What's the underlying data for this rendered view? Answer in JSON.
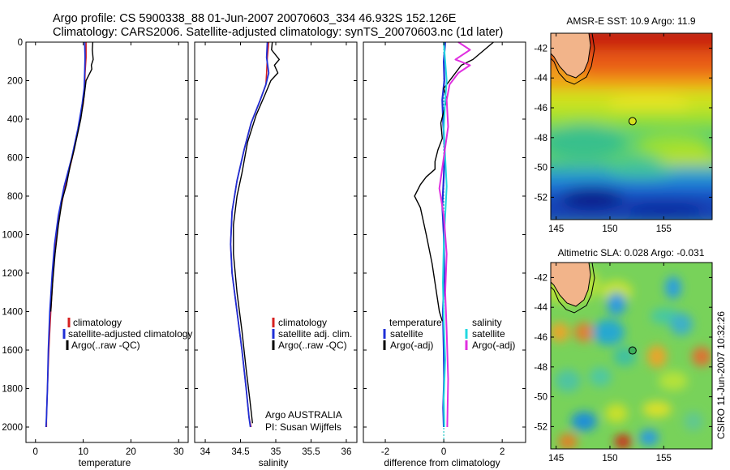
{
  "header": {
    "line1": "Argo profile: CS 5900338_88 01-Jun-2007 20070603_334 46.932S 152.126E",
    "line2": "Climatology: CARS2006. Satellite-adjusted climatology: synTS_20070603.nc (1d later)"
  },
  "colors": {
    "climatology": "#d62020",
    "satellite": "#1f2fd6",
    "argo": "#000000",
    "salinity_satellite": "#22d8e0",
    "salinity_argo": "#e030e0",
    "land": "#f2b48a"
  },
  "chart_data": [
    {
      "type": "line",
      "name": "temperature-panel",
      "xlabel": "temperature",
      "xlim": [
        -2,
        32
      ],
      "ylim": [
        2080,
        0
      ],
      "xticks": [
        "0",
        "10",
        "20",
        "30"
      ],
      "yticks": [
        "0",
        "200",
        "400",
        "600",
        "800",
        "1000",
        "1200",
        "1400",
        "1600",
        "1800",
        "2000"
      ],
      "legend": [
        "climatology",
        "satellite-adjusted climatology",
        "Argo(..raw -QC)"
      ],
      "series": [
        {
          "name": "climatology",
          "color": "#d62020",
          "width": 1.6,
          "x": [
            10.6,
            10.6,
            10.4,
            10.3,
            10.0,
            9.0,
            7.7,
            6.2,
            5.0,
            4.2,
            3.7,
            3.2,
            2.8,
            2.5,
            2.3,
            2.3
          ],
          "y": [
            0,
            80,
            160,
            240,
            320,
            450,
            600,
            750,
            900,
            1050,
            1200,
            1400,
            1600,
            1800,
            1950,
            2000
          ]
        },
        {
          "name": "satellite-adjusted",
          "color": "#1f2fd6",
          "width": 1.8,
          "x": [
            10.3,
            10.4,
            10.3,
            10.2,
            9.8,
            8.9,
            7.6,
            6.0,
            4.8,
            4.0,
            3.5,
            3.0,
            2.7,
            2.5,
            2.3,
            2.2
          ],
          "y": [
            0,
            80,
            160,
            240,
            320,
            450,
            600,
            750,
            900,
            1050,
            1200,
            1400,
            1600,
            1800,
            1950,
            2000
          ]
        },
        {
          "name": "Argo",
          "color": "#000000",
          "width": 1.4,
          "x": [
            12.0,
            11.9,
            12.1,
            11.7,
            11.8,
            10.6,
            10.2,
            9.5,
            8.1,
            7.3,
            6.8,
            6.5,
            5.6,
            4.8,
            4.1,
            3.6,
            3.2
          ],
          "y": [
            0,
            40,
            90,
            120,
            140,
            200,
            280,
            400,
            560,
            640,
            700,
            740,
            820,
            950,
            1100,
            1250,
            1400
          ]
        }
      ]
    },
    {
      "type": "line",
      "name": "salinity-panel",
      "xlabel": "salinity",
      "xlim": [
        33.85,
        36.15
      ],
      "ylim": [
        2080,
        0
      ],
      "xticks": [
        "34",
        "34.5",
        "35",
        "35.5",
        "36"
      ],
      "yticks": [],
      "legend": [
        "climatology",
        "satellite adj. clim.",
        "Argo(..raw -QC)"
      ],
      "annotation": [
        "Argo AUSTRALIA",
        "PI: Susan Wijffels"
      ],
      "series": [
        {
          "name": "climatology",
          "color": "#d62020",
          "width": 1.6,
          "x": [
            34.9,
            34.88,
            34.87,
            34.86,
            34.78,
            34.65,
            34.55,
            34.45,
            34.38,
            34.36,
            34.38,
            34.45,
            34.52,
            34.58,
            34.62,
            34.65
          ],
          "y": [
            0,
            80,
            160,
            220,
            300,
            420,
            560,
            720,
            880,
            1050,
            1200,
            1400,
            1600,
            1800,
            1950,
            2000
          ]
        },
        {
          "name": "satellite-adjusted",
          "color": "#1f2fd6",
          "width": 1.8,
          "x": [
            34.88,
            34.87,
            34.9,
            34.86,
            34.78,
            34.65,
            34.55,
            34.45,
            34.38,
            34.36,
            34.38,
            34.45,
            34.52,
            34.58,
            34.62,
            34.64
          ],
          "y": [
            0,
            80,
            160,
            220,
            300,
            420,
            560,
            720,
            880,
            1050,
            1200,
            1400,
            1600,
            1800,
            1950,
            2000
          ]
        },
        {
          "name": "Argo",
          "color": "#000000",
          "width": 1.4,
          "x": [
            34.95,
            34.94,
            35.05,
            34.98,
            35.03,
            34.93,
            34.85,
            34.72,
            34.6,
            34.52,
            34.45,
            34.4,
            34.4,
            34.45,
            34.52,
            34.58,
            34.63,
            34.67
          ],
          "y": [
            0,
            40,
            90,
            120,
            160,
            200,
            270,
            380,
            520,
            680,
            800,
            950,
            1100,
            1300,
            1500,
            1700,
            1850,
            1980
          ]
        }
      ]
    },
    {
      "type": "line",
      "name": "difference-panel",
      "xlabel": "difference from climatology",
      "xlim": [
        -2.75,
        2.8
      ],
      "ylim": [
        2080,
        0
      ],
      "xticks": [
        "-2",
        "0",
        "2"
      ],
      "yticks": [],
      "legend_left": {
        "title": "temperature",
        "items": [
          "satellite",
          "Argo(-adj)"
        ]
      },
      "legend_right": {
        "title": "salinity",
        "items": [
          "satellite",
          "Argo(-adj)"
        ]
      },
      "series": [
        {
          "name": "temperature satellite",
          "color": "#1f2fd6",
          "width": 2.2,
          "x": [
            0.05,
            0.0,
            0.02,
            -0.05,
            -0.02,
            0.03,
            0.0,
            -0.05,
            0.0,
            0.02,
            -0.03,
            0.0,
            0.01,
            -0.02,
            0.0
          ],
          "y": [
            0,
            100,
            200,
            300,
            420,
            560,
            700,
            850,
            1000,
            1200,
            1400,
            1600,
            1750,
            1900,
            2000
          ]
        },
        {
          "name": "temperature Argo(-adj)",
          "color": "#000000",
          "width": 1.4,
          "x": [
            1.7,
            1.0,
            0.6,
            0.3,
            0.0,
            0.1,
            -0.1,
            -0.05,
            -0.2,
            -0.3,
            -0.3,
            -0.6,
            -0.8,
            -1.0,
            -0.8,
            -0.6,
            -0.4,
            -0.25,
            -0.15,
            -0.05
          ],
          "y": [
            0,
            90,
            120,
            180,
            240,
            300,
            420,
            500,
            560,
            620,
            660,
            700,
            740,
            800,
            860,
            1000,
            1150,
            1300,
            1400,
            1450
          ]
        },
        {
          "name": "salinity satellite",
          "color": "#22d8e0",
          "width": 2.0,
          "x": [
            0.0,
            0.05,
            0.1,
            0.05,
            0.0,
            0.05,
            0.1,
            0.05,
            0.0,
            -0.03,
            0.0,
            0.05,
            0.0,
            0.02
          ],
          "y": [
            0,
            100,
            200,
            300,
            450,
            600,
            750,
            900,
            1050,
            1250,
            1450,
            1650,
            1850,
            2000
          ]
        },
        {
          "name": "salinity Argo(-adj)",
          "color": "#e030e0",
          "width": 2.0,
          "x": [
            0.5,
            0.9,
            0.4,
            0.9,
            0.5,
            0.2,
            0.1,
            0.15,
            0.0,
            -0.15,
            0.0,
            0.1,
            0.05,
            0.1,
            0.15,
            0.12
          ],
          "y": [
            0,
            40,
            90,
            120,
            160,
            220,
            300,
            440,
            600,
            760,
            900,
            1100,
            1300,
            1500,
            1750,
            2000
          ]
        }
      ]
    },
    {
      "type": "heatmap",
      "name": "sst-map",
      "title": "AMSR-E SST: 10.9 Argo: 11.9",
      "xlim": [
        144.5,
        159.5
      ],
      "ylim": [
        -53.5,
        -41
      ],
      "xticks": [
        "145",
        "150",
        "155"
      ],
      "yticks": [
        "-42",
        "-44",
        "-46",
        "-48",
        "-50",
        "-52"
      ],
      "argo_position": {
        "lon": 152.1,
        "lat": -46.9
      }
    },
    {
      "type": "heatmap",
      "name": "sla-map",
      "title": "Altimetric SLA: 0.028 Argo: -0.031",
      "xlim": [
        144.5,
        159.5
      ],
      "ylim": [
        -53.5,
        -41
      ],
      "xticks": [
        "145",
        "150",
        "155"
      ],
      "yticks": [
        "-42",
        "-44",
        "-46",
        "-48",
        "-50",
        "-52"
      ],
      "argo_position": {
        "lon": 152.1,
        "lat": -46.9
      }
    }
  ],
  "side_stamp": "CSIRO 11-Jun-2007 10:32:26"
}
